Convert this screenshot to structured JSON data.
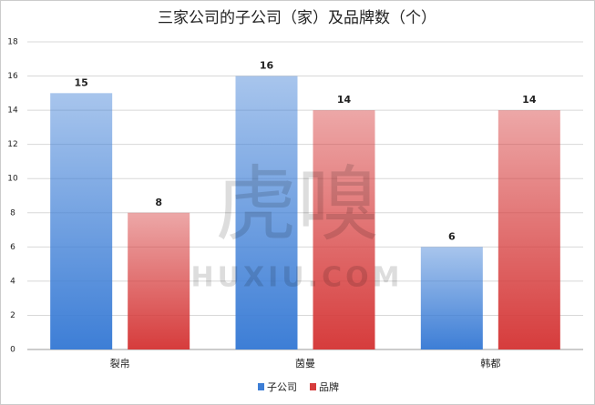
{
  "chart_data": {
    "type": "bar",
    "title": "三家公司的子公司（家）及品牌数（个）",
    "categories": [
      "裂帛",
      "茵曼",
      "韩都"
    ],
    "series": [
      {
        "name": "子公司",
        "color": "#3d7ed6",
        "values": [
          15,
          16,
          6
        ]
      },
      {
        "name": "品牌",
        "color": "#d63c3c",
        "values": [
          8,
          14,
          14
        ]
      }
    ],
    "ylim": [
      0,
      18
    ],
    "yticks": [
      0,
      2,
      4,
      6,
      8,
      10,
      12,
      14,
      16,
      18
    ],
    "grid": true,
    "legend": "bottom",
    "watermark": [
      "虎嗅",
      "HUXIU.COM"
    ]
  }
}
